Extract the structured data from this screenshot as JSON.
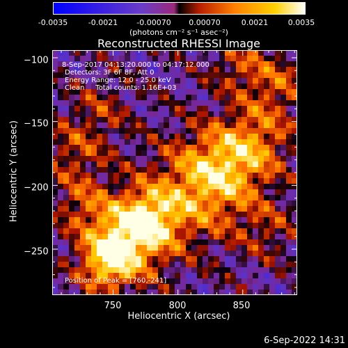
{
  "chart_data": {
    "type": "heatmap",
    "title": "Reconstructed RHESSI Image",
    "xlabel": "Heliocentric X (arcsec)",
    "ylabel": "Heliocentric Y (arcsec)",
    "xlim": [
      703,
      892
    ],
    "ylim": [
      -286,
      -94
    ],
    "x_ticks": [
      750,
      800,
      850
    ],
    "y_ticks": [
      -100,
      -150,
      -200,
      -250
    ],
    "peak": [
      760,
      -241
    ],
    "colorbar": {
      "ticks": [
        "-0.0035",
        "-0.0021",
        "-0.00070",
        "0.00070",
        "0.0021",
        "0.0035"
      ],
      "unit": "(photons cm⁻² s⁻¹ asec⁻²)",
      "range": [
        -0.0035,
        0.0035
      ]
    }
  },
  "info": {
    "line1": "8-Sep-2017 04:13:20.000 to 04:17:12.000",
    "line2": "Detectors: 3F 6F 8F, Att 0",
    "line3": "Energy Range: 12.0 - 25.0 keV",
    "line4": "Clean     Total counts: 1.16E+03",
    "peak_text": "Position of Peak = [760,-241]"
  },
  "datestamp": "6-Sep-2022 14:31"
}
